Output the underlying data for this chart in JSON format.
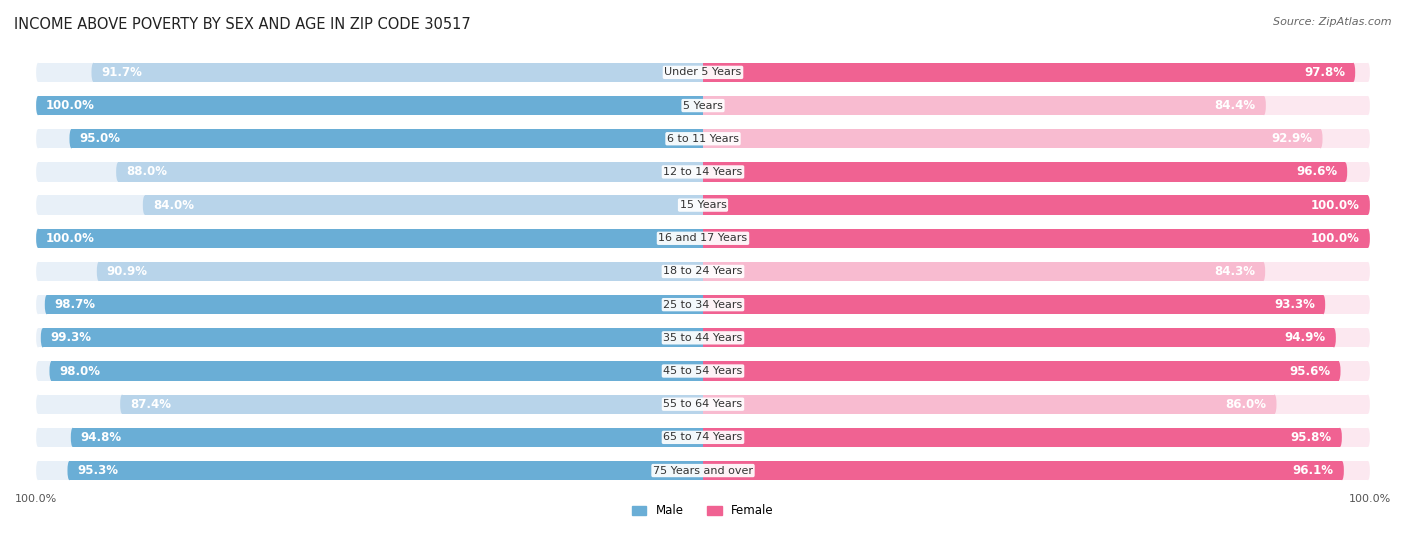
{
  "title": "INCOME ABOVE POVERTY BY SEX AND AGE IN ZIP CODE 30517",
  "source": "Source: ZipAtlas.com",
  "categories": [
    "Under 5 Years",
    "5 Years",
    "6 to 11 Years",
    "12 to 14 Years",
    "15 Years",
    "16 and 17 Years",
    "18 to 24 Years",
    "25 to 34 Years",
    "35 to 44 Years",
    "45 to 54 Years",
    "55 to 64 Years",
    "65 to 74 Years",
    "75 Years and over"
  ],
  "male_values": [
    91.7,
    100.0,
    95.0,
    88.0,
    84.0,
    100.0,
    90.9,
    98.7,
    99.3,
    98.0,
    87.4,
    94.8,
    95.3
  ],
  "female_values": [
    97.8,
    84.4,
    92.9,
    96.6,
    100.0,
    100.0,
    84.3,
    93.3,
    94.9,
    95.6,
    86.0,
    95.8,
    96.1
  ],
  "male_color_strong": "#6aaed6",
  "male_color_weak": "#b8d4ea",
  "female_color_strong": "#f06292",
  "female_color_weak": "#f8bbd0",
  "male_label": "Male",
  "female_label": "Female",
  "bar_height": 0.58,
  "title_fontsize": 10.5,
  "label_fontsize": 8.5,
  "tick_fontsize": 8,
  "source_fontsize": 8,
  "background_color": "#ffffff",
  "bar_bg_male": "#e8f0f8",
  "bar_bg_female": "#fce8f0",
  "strong_threshold": 93.0
}
